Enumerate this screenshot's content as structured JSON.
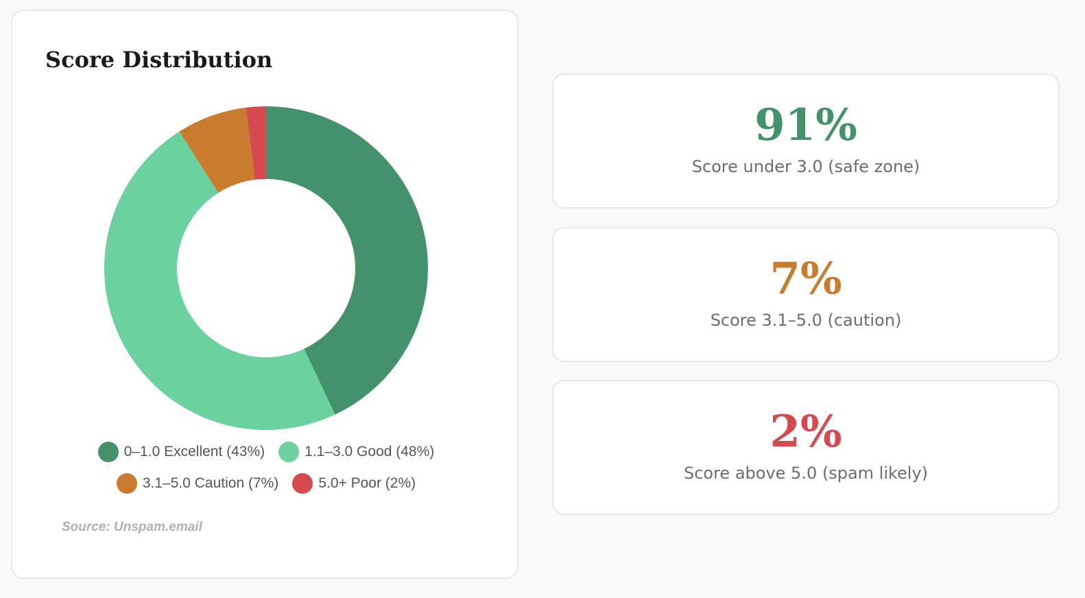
{
  "chart_data": {
    "type": "pie",
    "title": "Score Distribution",
    "categories": [
      "0–1.0 Excellent (43%)",
      "1.1–3.0 Good (48%)",
      "3.1–5.0 Caution (7%)",
      "5.0+ Poor (2%)"
    ],
    "values": [
      43,
      48,
      7,
      2
    ],
    "colors": [
      "#43926b",
      "#6bd19e",
      "#c97b2e",
      "#d64a4f"
    ],
    "source": "Source: Unspam.email"
  },
  "stats": [
    {
      "value": "91%",
      "label": "Score under 3.0 (safe zone)",
      "color": "#43926b"
    },
    {
      "value": "7%",
      "label": "Score 3.1–5.0 (caution)",
      "color": "#c97b2e"
    },
    {
      "value": "2%",
      "label": "Score above 5.0 (spam likely)",
      "color": "#d64a4f"
    }
  ]
}
